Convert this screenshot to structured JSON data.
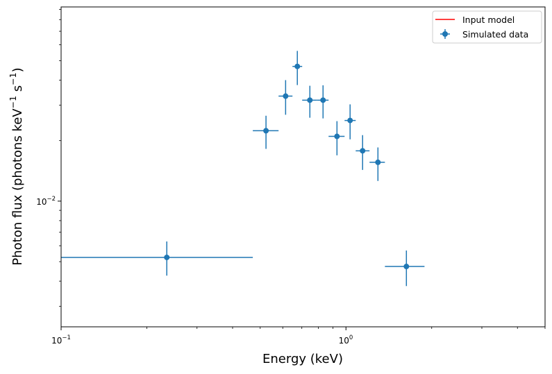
{
  "chart_data": {
    "type": "scatter",
    "title": "",
    "xlabel": "Energy (keV)",
    "ylabel_main": "Photon flux (photons keV",
    "ylabel_sup1": "−1",
    "ylabel_mid": " s",
    "ylabel_sup2": "−1",
    "ylabel_end": ")",
    "xscale": "log",
    "yscale": "log",
    "xlim": [
      0.1,
      5.0
    ],
    "ylim": [
      0.00237,
      0.0925
    ],
    "grid": false,
    "x_ticks": [
      {
        "value": 0.1,
        "base": "10",
        "exp": "−1"
      },
      {
        "value": 1.0,
        "base": "10",
        "exp": "0"
      }
    ],
    "y_ticks": [
      {
        "value": 0.01,
        "base": "10",
        "exp": "−2"
      }
    ],
    "legend": {
      "placement": "top-right",
      "entries": [
        {
          "label": "Input model",
          "kind": "line",
          "color": "#ff0000"
        },
        {
          "label": "Simulated data",
          "kind": "errorbar",
          "color": "#1f77b4"
        }
      ]
    },
    "series": [
      {
        "name": "Simulated data",
        "kind": "errorbar",
        "color": "#1f77b4",
        "points": [
          {
            "x": 0.235,
            "xlo": 0.0,
            "xhi": 0.471,
            "y": 0.00525,
            "ylo": 0.00426,
            "yhi": 0.0063
          },
          {
            "x": 0.524,
            "xlo": 0.471,
            "xhi": 0.58,
            "y": 0.0224,
            "ylo": 0.0182,
            "yhi": 0.0266
          },
          {
            "x": 0.614,
            "xlo": 0.58,
            "xhi": 0.649,
            "y": 0.0333,
            "ylo": 0.0269,
            "yhi": 0.04
          },
          {
            "x": 0.675,
            "xlo": 0.649,
            "xhi": 0.702,
            "y": 0.0468,
            "ylo": 0.0378,
            "yhi": 0.0559
          },
          {
            "x": 0.747,
            "xlo": 0.702,
            "xhi": 0.79,
            "y": 0.0318,
            "ylo": 0.026,
            "yhi": 0.0375
          },
          {
            "x": 0.831,
            "xlo": 0.79,
            "xhi": 0.869,
            "y": 0.0318,
            "ylo": 0.0258,
            "yhi": 0.0377
          },
          {
            "x": 0.93,
            "xlo": 0.869,
            "xhi": 0.989,
            "y": 0.021,
            "ylo": 0.0169,
            "yhi": 0.025
          },
          {
            "x": 1.034,
            "xlo": 0.989,
            "xhi": 1.082,
            "y": 0.0252,
            "ylo": 0.0203,
            "yhi": 0.0303
          },
          {
            "x": 1.144,
            "xlo": 1.082,
            "xhi": 1.21,
            "y": 0.0178,
            "ylo": 0.0143,
            "yhi": 0.0213
          },
          {
            "x": 1.295,
            "xlo": 1.21,
            "xhi": 1.37,
            "y": 0.0156,
            "ylo": 0.0126,
            "yhi": 0.0185
          },
          {
            "x": 1.63,
            "xlo": 1.37,
            "xhi": 1.887,
            "y": 0.00473,
            "ylo": 0.00378,
            "yhi": 0.00568
          }
        ]
      },
      {
        "name": "Input model",
        "kind": "line",
        "color": "#ff0000",
        "points": []
      }
    ]
  }
}
